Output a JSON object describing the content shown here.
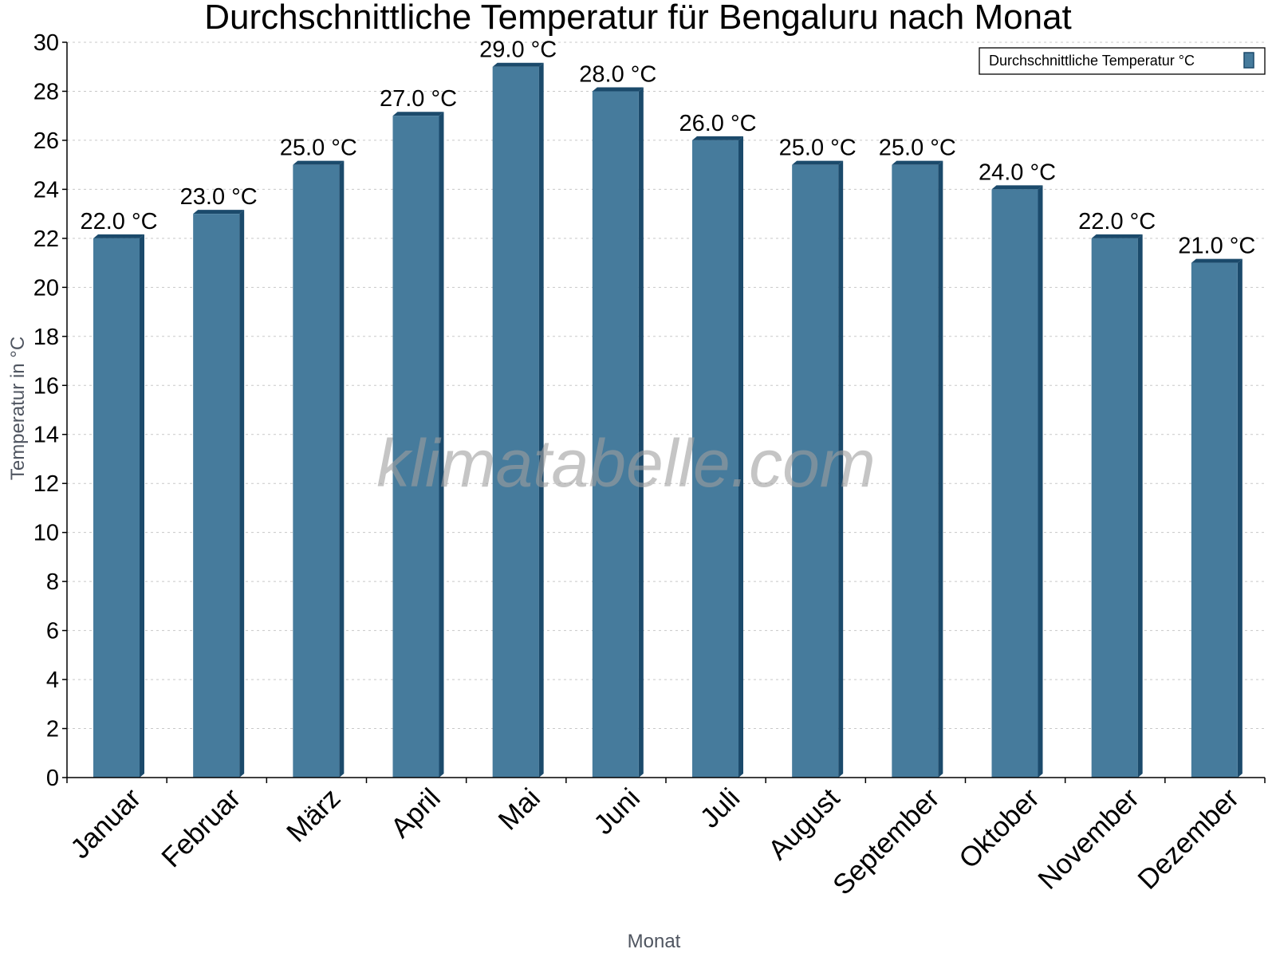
{
  "chart_data": {
    "type": "bar",
    "title": "Durchschnittliche Temperatur für Bengaluru nach Monat",
    "xlabel": "Monat",
    "ylabel": "Temperatur in °C",
    "categories": [
      "Januar",
      "Februar",
      "März",
      "April",
      "Mai",
      "Juni",
      "Juli",
      "August",
      "September",
      "Oktober",
      "November",
      "Dezember"
    ],
    "series": [
      {
        "name": "Durchschnittliche Temperatur °C",
        "values": [
          22.0,
          23.0,
          25.0,
          27.0,
          29.0,
          28.0,
          26.0,
          25.0,
          25.0,
          24.0,
          22.0,
          21.0
        ]
      }
    ],
    "value_labels": [
      "22.0 °C",
      "23.0 °C",
      "25.0 °C",
      "27.0 °C",
      "29.0 °C",
      "28.0 °C",
      "26.0 °C",
      "25.0 °C",
      "25.0 °C",
      "24.0 °C",
      "22.0 °C",
      "21.0 °C"
    ],
    "ylim": [
      0,
      30
    ],
    "yticks": [
      0,
      2,
      4,
      6,
      8,
      10,
      12,
      14,
      16,
      18,
      20,
      22,
      24,
      26,
      28,
      30
    ],
    "grid": true,
    "legend_position": "top-right",
    "watermark": "klimatabelle.com",
    "colors": {
      "bar_front": "#467b9c",
      "bar_side": "#1b4a6b",
      "grid": "#c8c8c8",
      "axis": "#000000"
    }
  }
}
